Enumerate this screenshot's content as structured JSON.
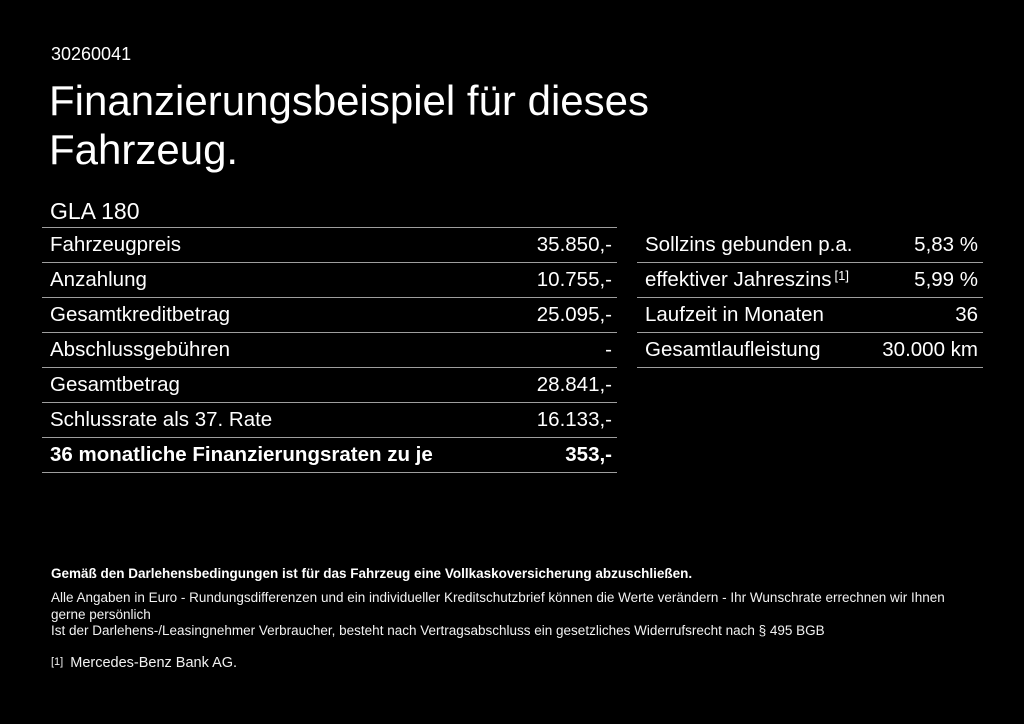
{
  "page": {
    "background": "#000000",
    "text_color": "#ffffff",
    "divider_color": "#9e9e9e"
  },
  "header": {
    "ref_number": "30260041",
    "title_line1": "Finanzierungsbeispiel für dieses",
    "title_line2": "Fahrzeug.",
    "model": "GLA 180"
  },
  "finance_table": {
    "rows": [
      {
        "label": "Fahrzeugpreis",
        "value": "35.850,-"
      },
      {
        "label": "Anzahlung",
        "value": "10.755,-"
      },
      {
        "label": "Gesamtkreditbetrag",
        "value": "25.095,-"
      },
      {
        "label": "Abschlussgebühren",
        "value": "-"
      },
      {
        "label": "Gesamtbetrag",
        "value": "28.841,-"
      },
      {
        "label": "Schlussrate als 37. Rate",
        "value": "16.133,-"
      },
      {
        "label": "36 monatliche Finanzierungsraten zu je",
        "value": "353,-"
      }
    ]
  },
  "conditions_table": {
    "rows": [
      {
        "label": "Sollzins gebunden p.a.",
        "value": "5,83 %"
      },
      {
        "label": "effektiver Jahreszins",
        "sup": "[1]",
        "value": "5,99 %"
      },
      {
        "label": "Laufzeit in Monaten",
        "value": "36"
      },
      {
        "label": "Gesamtlaufleistung",
        "value": "30.000 km"
      }
    ]
  },
  "footer": {
    "insurance_note": "Gemäß den Darlehensbedingungen ist für das Fahrzeug eine Vollkaskoversicherung abzuschließen.",
    "disclaimer_line1": "Alle Angaben in Euro - Rundungsdifferenzen und ein individueller Kreditschutzbrief können die Werte verändern - Ihr Wunschrate errechnen wir Ihnen gerne persönlich",
    "disclaimer_line2": "Ist der Darlehens-/Leasingnehmer Verbraucher, besteht nach Vertragsabschluss ein gesetzliches Widerrufsrecht nach § 495 BGB",
    "footnote_marker": "[1]",
    "footnote_text": "Mercedes-Benz Bank AG."
  }
}
